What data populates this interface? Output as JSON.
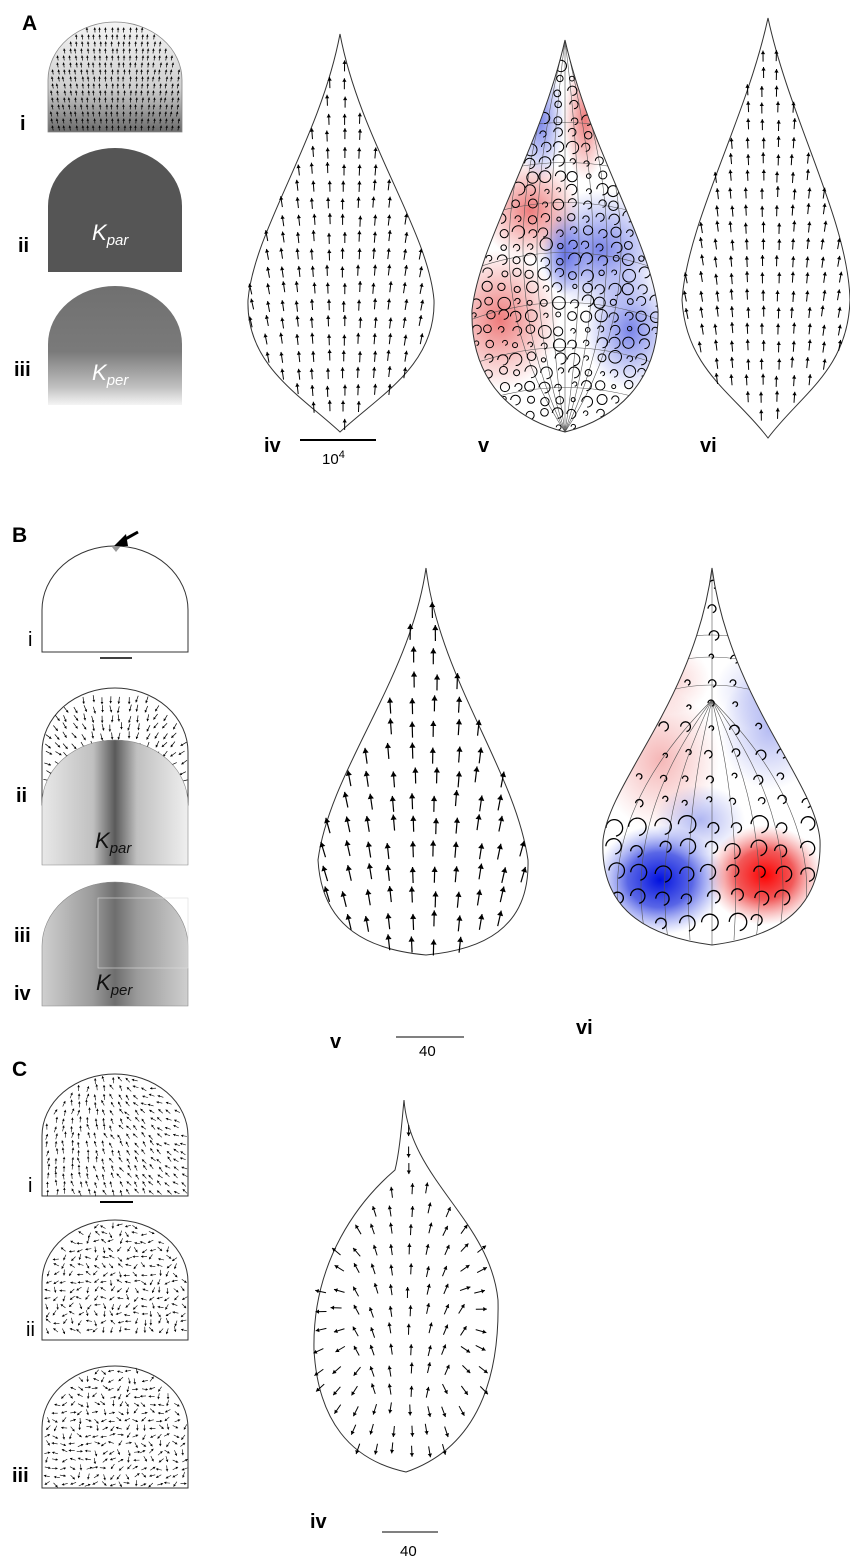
{
  "panels": {
    "A": {
      "label": "A",
      "sub": {
        "i": "i",
        "ii": "ii",
        "iii": "iii",
        "iv": "iv",
        "v": "v",
        "vi": "vi"
      },
      "k_par": {
        "base": "K",
        "sub": "par"
      },
      "k_per": {
        "base": "K",
        "sub": "per"
      },
      "scale_label": "10",
      "scale_exp": "4"
    },
    "B": {
      "label": "B",
      "sub": {
        "i": "i",
        "ii": "ii",
        "iii": "iii",
        "iv": "iv",
        "v": "v",
        "vi": "vi"
      },
      "k_par": {
        "base": "K",
        "sub": "par"
      },
      "k_per": {
        "base": "K",
        "sub": "per"
      },
      "scale_label": "40"
    },
    "C": {
      "label": "C",
      "sub": {
        "i": "i",
        "ii": "ii",
        "iii": "iii",
        "iv": "iv"
      },
      "scale_label": "40"
    }
  },
  "colors": {
    "positive": "#e53030",
    "negative": "#2030e0",
    "outline": "#333333",
    "dark_gray": "#555555",
    "mid_gray": "#7a7a7a"
  }
}
